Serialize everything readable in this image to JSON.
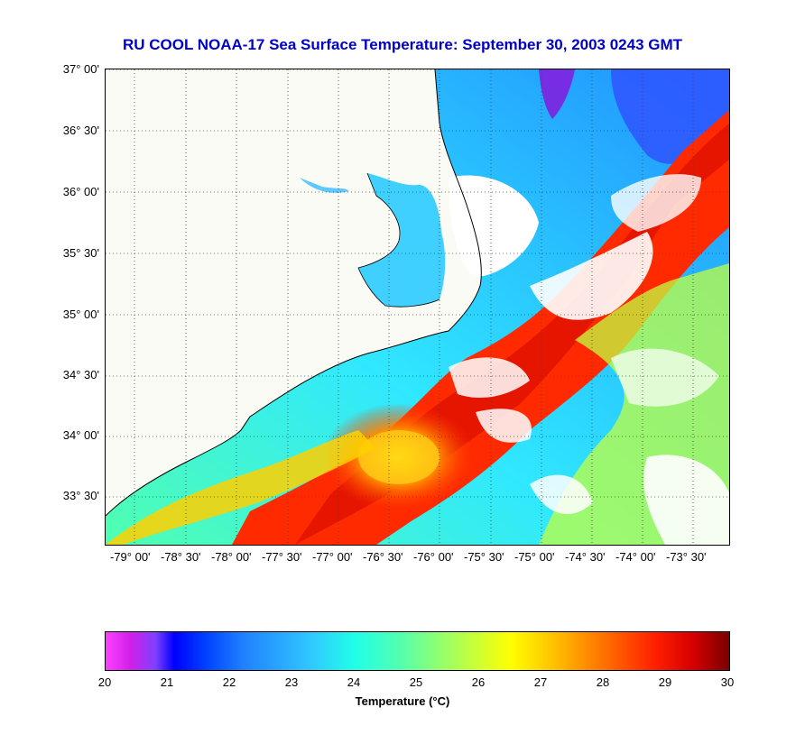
{
  "title": "RU COOL  NOAA-17  Sea Surface Temperature:  September 30, 2003 0243 GMT",
  "latitude_labels": [
    "37° 00'",
    "36° 30'",
    "36° 00'",
    "35° 30'",
    "35° 00'",
    "34° 30'",
    "34° 00'",
    "33° 30'"
  ],
  "longitude_labels": [
    "-79° 00'",
    "-78° 30'",
    "-78° 00'",
    "-77° 30'",
    "-77° 00'",
    "-76° 30'",
    "-76° 00'",
    "-75° 30'",
    "-75° 00'",
    "-74° 30'",
    "-74° 00'",
    "-73° 30'"
  ],
  "colorbar": {
    "ticks": [
      "20",
      "21",
      "22",
      "23",
      "24",
      "25",
      "26",
      "27",
      "28",
      "29",
      "30"
    ],
    "label": "Temperature (°C)",
    "range": [
      20,
      30
    ]
  },
  "colors": {
    "title": "#0000c8",
    "land": "#fbfbf6",
    "cold": "#0000ff",
    "warm": "#ff2000"
  }
}
